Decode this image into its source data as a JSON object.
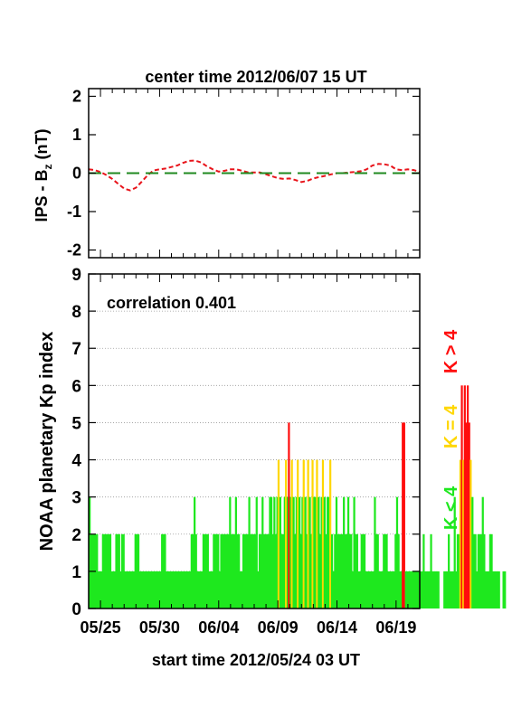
{
  "figure": {
    "title": "center time 2012/06/07 15 UT",
    "footer": "start time 2012/05/24 03 UT"
  },
  "chart_data": [
    {
      "type": "line",
      "ylabel_main": "IPS - B",
      "ylabel_sub": "z",
      "ylabel_unit": " (nT)",
      "ylim": [
        -2.2,
        2.2
      ],
      "yticks": [
        -2,
        -1,
        0,
        1,
        2
      ],
      "xlim": [
        0,
        28
      ],
      "grid": false,
      "series": [
        {
          "color": "#e8141b",
          "style": "dashed",
          "x": [
            0,
            0.5,
            1,
            1.5,
            2,
            2.5,
            3,
            3.5,
            4,
            4.5,
            5,
            5.5,
            6,
            6.5,
            7,
            7.5,
            8,
            8.5,
            9,
            9.5,
            10,
            10.5,
            11,
            11.5,
            12,
            12.5,
            13,
            13.5,
            14,
            14.5,
            15,
            15.5,
            16,
            16.5,
            17,
            17.5,
            18,
            18.5,
            19,
            19.5,
            20,
            20.5,
            21,
            21.5,
            22,
            22.5,
            23,
            23.5,
            24,
            24.5,
            25,
            25.5,
            26,
            26.5,
            27,
            27.5,
            28
          ],
          "y": [
            0.1,
            0.08,
            0.03,
            -0.05,
            -0.15,
            -0.28,
            -0.4,
            -0.45,
            -0.38,
            -0.22,
            -0.05,
            0.07,
            0.1,
            0.12,
            0.16,
            0.2,
            0.27,
            0.32,
            0.33,
            0.28,
            0.18,
            0.1,
            0.04,
            0.06,
            0.1,
            0.1,
            0.06,
            0.02,
            0.02,
            0.02,
            -0.03,
            -0.08,
            -0.13,
            -0.15,
            -0.14,
            -0.18,
            -0.23,
            -0.2,
            -0.14,
            -0.1,
            -0.07,
            -0.03,
            0,
            0,
            0.02,
            0.03,
            0.05,
            0.1,
            0.2,
            0.24,
            0.23,
            0.2,
            0.1,
            0.08,
            0.1,
            0.08,
            0.03
          ]
        },
        {
          "color": "#1f8a1f",
          "style": "long-dash",
          "x": [
            0,
            28
          ],
          "y": [
            0,
            0
          ]
        }
      ]
    },
    {
      "type": "bar",
      "ylabel": "NOAA planetary Kp index",
      "annotation": "correlation 0.401",
      "ylim": [
        0,
        9
      ],
      "yticks": [
        0,
        1,
        2,
        3,
        4,
        5,
        6,
        7,
        8,
        9
      ],
      "xlim": [
        0,
        28
      ],
      "grid": "horizontal dotted",
      "xticks": [
        {
          "x": 1,
          "label": "05/25"
        },
        {
          "x": 6,
          "label": "05/30"
        },
        {
          "x": 11,
          "label": "06/04"
        },
        {
          "x": 16,
          "label": "06/09"
        },
        {
          "x": 21,
          "label": "06/14"
        },
        {
          "x": 26,
          "label": "06/19"
        }
      ],
      "legend": {
        "placement": "right, vertical",
        "entries": [
          {
            "label": "K < 4",
            "color": "#1ee81e"
          },
          {
            "label": "K = 4",
            "color": "#ffd700"
          },
          {
            "label": "K > 4",
            "color": "#ff0d0d"
          }
        ]
      },
      "bar_width_days": 0.125,
      "values": [
        3,
        2,
        2,
        2,
        2,
        2,
        1,
        1,
        1,
        2,
        2,
        2,
        2,
        2,
        2,
        1,
        1,
        1,
        2,
        2,
        2,
        1,
        2,
        2,
        1,
        1,
        1,
        1,
        1,
        1,
        1,
        2,
        2,
        2,
        1,
        1,
        1,
        1,
        1,
        1,
        1,
        1,
        1,
        1,
        1,
        1,
        1,
        1,
        1,
        2,
        2,
        2,
        1,
        1,
        1,
        1,
        1,
        1,
        1,
        1,
        1,
        1,
        1,
        1,
        1,
        1,
        1,
        1,
        1,
        2,
        2,
        3,
        2,
        1,
        1,
        1,
        1,
        2,
        2,
        2,
        2,
        1,
        1,
        1,
        2,
        2,
        2,
        2,
        1,
        2,
        2,
        2,
        2,
        2,
        2,
        3,
        2,
        2,
        2,
        3,
        2,
        2,
        1,
        1,
        2,
        2,
        2,
        2,
        3,
        2,
        2,
        2,
        2,
        3,
        1,
        2,
        2,
        3,
        2,
        2,
        2,
        2,
        3,
        3,
        2,
        3,
        2,
        3,
        4,
        3,
        2,
        2,
        3,
        4,
        3,
        5,
        3,
        4,
        3,
        2,
        3,
        4,
        3,
        2,
        3,
        4,
        3,
        2,
        4,
        3,
        2,
        4,
        3,
        3,
        4,
        3,
        2,
        3,
        4,
        3,
        2,
        3,
        3,
        4,
        2,
        1,
        2,
        3,
        2,
        2,
        2,
        2,
        3,
        2,
        2,
        3,
        2,
        2,
        1,
        3,
        2,
        2,
        1,
        1,
        2,
        2,
        2,
        1,
        1,
        1,
        1,
        1,
        1,
        3,
        2,
        2,
        1,
        1,
        1,
        2,
        2,
        2,
        1,
        1,
        1,
        1,
        1,
        2,
        3,
        2,
        1,
        1,
        5,
        5,
        1,
        1,
        1,
        1,
        1,
        1,
        1,
        1,
        1,
        1,
        1,
        1,
        2,
        1,
        1,
        1,
        1,
        2,
        1,
        1,
        1,
        1,
        1,
        0,
        0,
        0,
        1,
        1,
        1,
        2,
        1,
        1,
        1,
        3,
        1,
        2,
        2,
        4,
        6,
        4,
        6,
        5,
        6,
        5,
        4,
        3,
        2,
        2,
        1,
        2,
        2,
        2,
        3,
        2,
        1,
        1,
        1,
        2,
        2,
        1,
        1,
        1,
        1,
        1,
        0,
        0,
        1,
        1
      ]
    }
  ]
}
